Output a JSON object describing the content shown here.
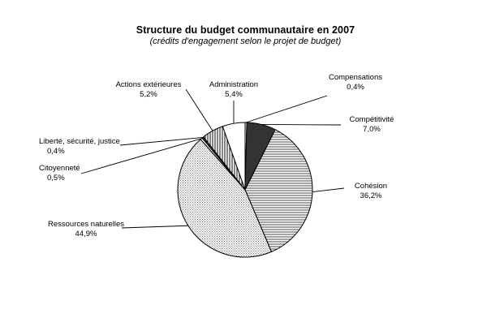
{
  "chart_data": {
    "type": "pie",
    "title": "Structure du budget communautaire en 2007",
    "subtitle": "(crédits d'engagement selon le projet de budget)",
    "legend": "none",
    "slices": [
      {
        "label": "Compensations",
        "value": 0.4,
        "value_label": "0,4%",
        "fill": "white"
      },
      {
        "label": "Compétitivité",
        "value": 7.0,
        "value_label": "7,0%",
        "fill": "dark"
      },
      {
        "label": "Cohésion",
        "value": 36.2,
        "value_label": "36,2%",
        "fill": "horizontal-lines"
      },
      {
        "label": "Ressources naturelles",
        "value": 44.9,
        "value_label": "44,9%",
        "fill": "dots"
      },
      {
        "label": "Citoyenneté",
        "value": 0.5,
        "value_label": "0,5%",
        "fill": "white"
      },
      {
        "label": "Liberté, sécurité, justice",
        "value": 0.4,
        "value_label": "0,4%",
        "fill": "dark"
      },
      {
        "label": "Actions extérieures",
        "value": 5.2,
        "value_label": "5,2%",
        "fill": "vertical-lines"
      },
      {
        "label": "Administration",
        "value": 5.4,
        "value_label": "5,4%",
        "fill": "white"
      }
    ]
  }
}
